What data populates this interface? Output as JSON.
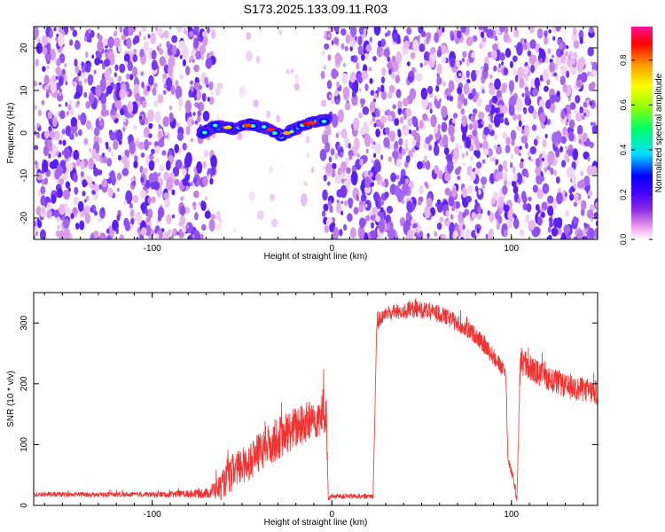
{
  "title": "S173.2025.133.09.11.R03",
  "chart_data": [
    {
      "type": "heatmap",
      "xlabel": "Height of straight line (km)",
      "ylabel": "Frequency (Hz)",
      "xlim": [
        -166,
        148
      ],
      "ylim": [
        -25,
        25
      ],
      "xticks": [
        -100,
        0,
        100
      ],
      "yticks": [
        -20,
        -10,
        0,
        10,
        20
      ],
      "colorbar": {
        "label": "Normalized spectral amplitude",
        "range": [
          0,
          0.95
        ],
        "ticks": [
          0.0,
          0.2,
          0.4,
          0.6,
          0.8
        ],
        "colormap": [
          "#ffffff",
          "#ee99ee",
          "#8a2be2",
          "#4400ff",
          "#0000ff",
          "#00ddff",
          "#00ff66",
          "#99ff00",
          "#ffff00",
          "#ff9900",
          "#ff0000",
          "#ff1199"
        ]
      },
      "blank_band_km": [
        -65,
        -5
      ],
      "ridge": {
        "x": [
          -72,
          -68,
          -65,
          -60,
          -55,
          -50,
          -45,
          -40,
          -35,
          -30,
          -28,
          -25,
          -20,
          -15,
          -10,
          -5,
          -3
        ],
        "y": [
          0,
          1,
          1.5,
          1.5,
          1,
          1.5,
          2,
          1.5,
          1,
          0,
          -0.5,
          0,
          1,
          2,
          2.5,
          3,
          3
        ]
      }
    },
    {
      "type": "line",
      "xlabel": "Height of straight line (km)",
      "ylabel": "SNR (10 * v/v)",
      "xlim": [
        -166,
        148
      ],
      "ylim": [
        0,
        350
      ],
      "xticks": [
        -100,
        0,
        100
      ],
      "yticks": [
        0,
        100,
        200,
        300
      ],
      "color": "#ee3333",
      "x": [
        -166,
        -150,
        -130,
        -110,
        -90,
        -70,
        -62,
        -55,
        -45,
        -35,
        -25,
        -15,
        -5,
        -3,
        -2,
        0,
        5,
        10,
        15,
        20,
        23,
        25,
        30,
        40,
        50,
        60,
        70,
        80,
        90,
        97,
        98,
        100,
        102,
        103,
        105,
        107,
        110,
        120,
        130,
        140,
        148
      ],
      "y": [
        18,
        18,
        18,
        18,
        18,
        20,
        30,
        55,
        75,
        100,
        120,
        135,
        150,
        155,
        10,
        15,
        15,
        15,
        15,
        15,
        15,
        300,
        315,
        320,
        322,
        315,
        300,
        280,
        245,
        215,
        75,
        55,
        30,
        5,
        240,
        235,
        225,
        210,
        195,
        190,
        185
      ],
      "noise": [
        4,
        4,
        4,
        4,
        5,
        8,
        22,
        30,
        32,
        35,
        35,
        35,
        35,
        35,
        3,
        4,
        4,
        4,
        4,
        4,
        4,
        12,
        12,
        14,
        14,
        14,
        14,
        14,
        14,
        14,
        8,
        8,
        8,
        4,
        28,
        24,
        22,
        20,
        20,
        20,
        20
      ]
    }
  ]
}
